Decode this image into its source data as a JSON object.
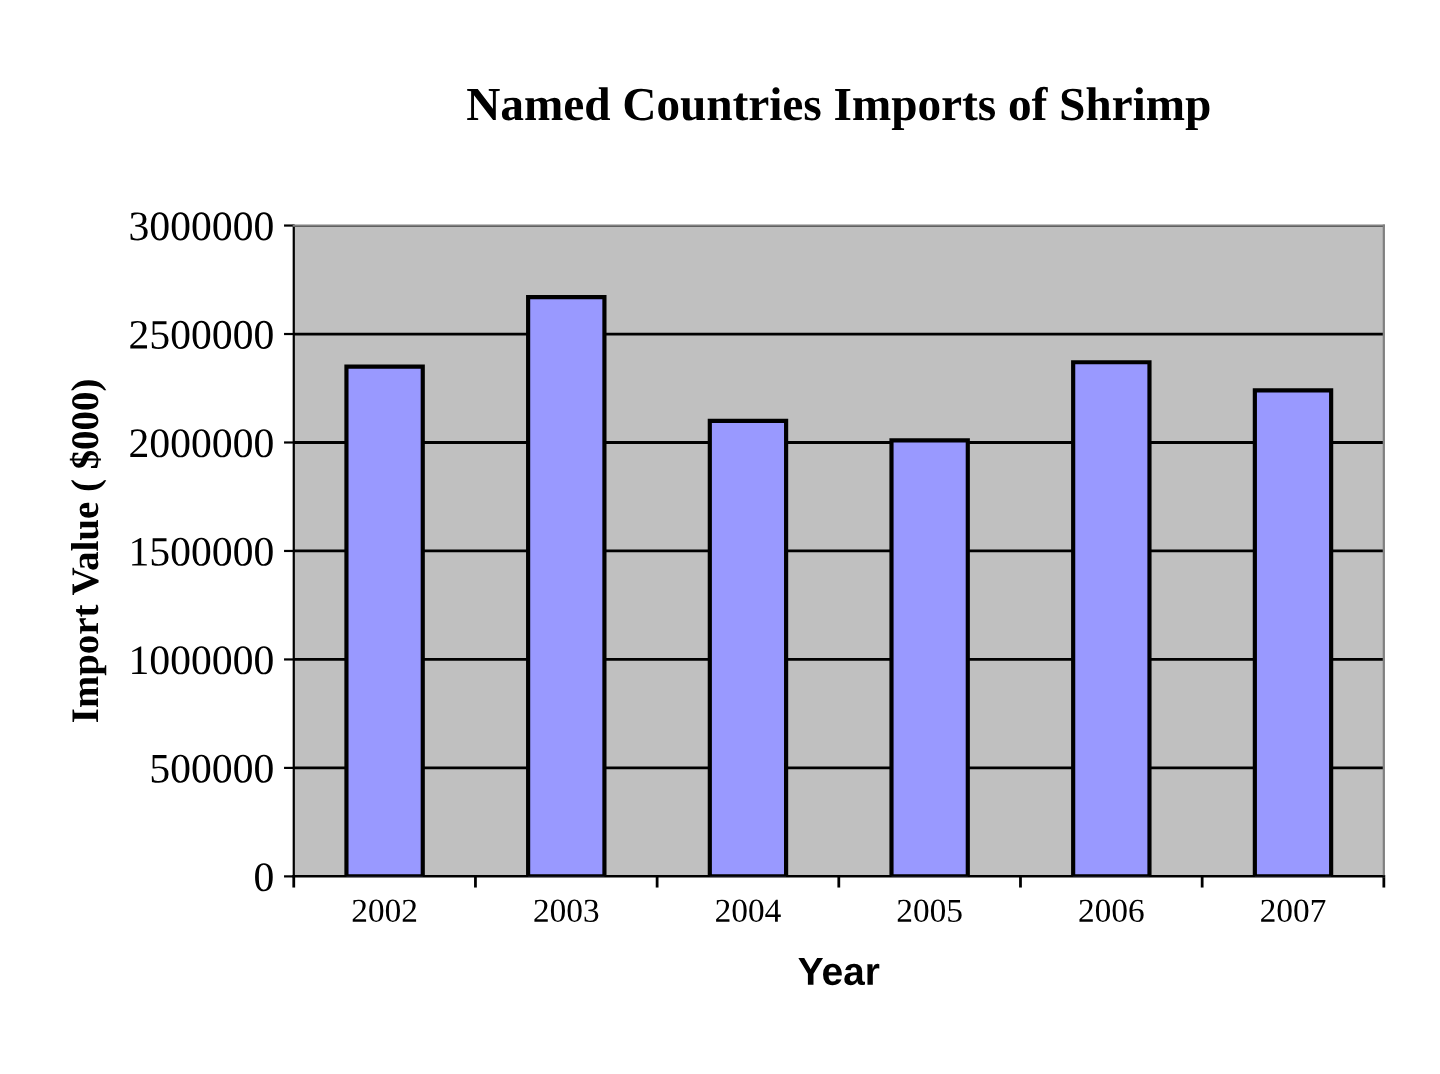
{
  "chart_data": {
    "type": "bar",
    "title": "Named Countries Imports of Shrimp",
    "xlabel": "Year",
    "ylabel": "Import Value ( $000)",
    "categories": [
      "2002",
      "2003",
      "2004",
      "2005",
      "2006",
      "2007"
    ],
    "values": [
      2350000,
      2670000,
      2100000,
      2010000,
      2370000,
      2240000
    ],
    "color": "#9999ff",
    "ylim": [
      0,
      3000000
    ],
    "yticks": [
      0,
      500000,
      1000000,
      1500000,
      2000000,
      2500000,
      3000000
    ],
    "grid": "y"
  }
}
